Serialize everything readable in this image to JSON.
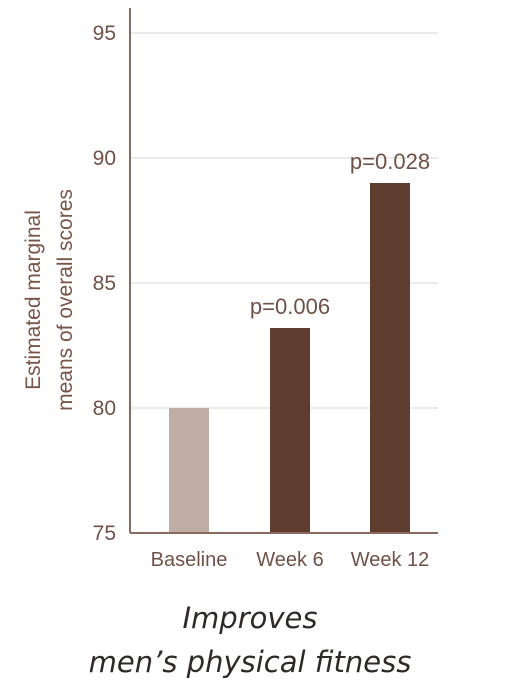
{
  "chart_data": {
    "type": "bar",
    "categories": [
      "Baseline",
      "Week 6",
      "Week 12"
    ],
    "values": [
      80,
      83.2,
      89
    ],
    "annotations": [
      "",
      "p=0.006",
      "p=0.028"
    ],
    "ylabel": [
      "Estimated marginal",
      "means of overall scores"
    ],
    "ylim": [
      75,
      96
    ],
    "yticks": [
      75,
      80,
      85,
      90,
      95
    ],
    "grid": true,
    "colors": {
      "baseline": "#bfada6",
      "treatment": "#5e3d2e",
      "axis": "#8a6a5f",
      "grid": "#e9e4e2"
    }
  },
  "caption": {
    "line1": "Improves",
    "line2": "men’s physical fitness"
  }
}
